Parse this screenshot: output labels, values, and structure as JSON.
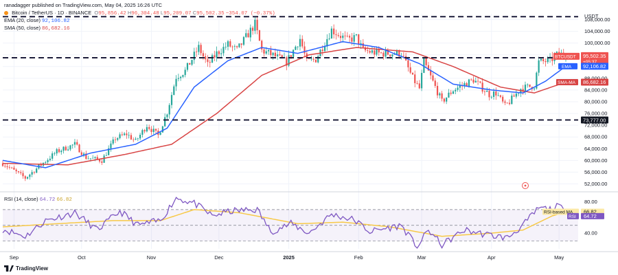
{
  "header": {
    "published_line": "ranadagger published on TradingView.com, May 04, 2025 16:26 UTC",
    "symbol_line": "Bitcoin / TetherUS · 1D · BINANCE",
    "ohlc": {
      "o_label": "O",
      "o": "95,856.42",
      "h_label": "H",
      "h": "96,304.48",
      "l_label": "L",
      "l": "95,209.07",
      "c_label": "C",
      "c": "95,502.35",
      "change": "−354.07 (−0.37%)"
    },
    "ema_label": "EMA (20, close)",
    "ema_value": "92,106.82",
    "sma_label": "SMA (50, close)",
    "sma_value": "86,682.16",
    "rsi_label": "RSI (14, close)",
    "rsi_value": "64.72",
    "rsi_ma_value": "66.82",
    "currency": "USDT"
  },
  "colors": {
    "up": "#26a69a",
    "down": "#ef5350",
    "ema": "#2962ff",
    "sma": "#d84444",
    "rsi": "#7e57c2",
    "rsi_ma": "#f7c948",
    "dashed": "#1c1c3a",
    "grid": "#f0f3fa"
  },
  "chart_data": {
    "type": "candlestick",
    "symbol": "BTCUSDT",
    "timeframe": "1D",
    "x_range": [
      "2024-08-27",
      "2025-05-04"
    ],
    "ylim": [
      50000,
      110000
    ],
    "y_ticks": [
      52000,
      56000,
      60000,
      64000,
      68000,
      72000,
      76000,
      80000,
      84000,
      88000,
      92000,
      96000,
      100000,
      104000,
      108000
    ],
    "y_tick_labels": [
      "52,000.00",
      "56,000.00",
      "60,000.00",
      "64,000.00",
      "68,000.00",
      "72,000.00",
      "76,000.00",
      "80,000.00",
      "84,000.00",
      "88,000.00",
      "92,000.00",
      "96,000.00",
      "100,000.00",
      "104,000.00",
      "108,000.00"
    ],
    "x_ticks": [
      "2024-09-01",
      "2024-10-01",
      "2024-11-01",
      "2024-12-01",
      "2025-01-01",
      "2025-02-01",
      "2025-03-01",
      "2025-04-01",
      "2025-05-01"
    ],
    "x_tick_labels": [
      "Sep",
      "Oct",
      "Nov",
      "Dec",
      "2025",
      "Feb",
      "Mar",
      "Apr",
      "May"
    ],
    "anchors": [
      [
        "2024-08-27",
        59000
      ],
      [
        "2024-09-06",
        54000
      ],
      [
        "2024-09-13",
        58500
      ],
      [
        "2024-09-20",
        63000
      ],
      [
        "2024-09-28",
        65500
      ],
      [
        "2024-10-03",
        61000
      ],
      [
        "2024-10-10",
        60000
      ],
      [
        "2024-10-16",
        67500
      ],
      [
        "2024-10-21",
        69000
      ],
      [
        "2024-10-25",
        66500
      ],
      [
        "2024-10-30",
        72000
      ],
      [
        "2024-11-04",
        68500
      ],
      [
        "2024-11-08",
        76500
      ],
      [
        "2024-11-12",
        88500
      ],
      [
        "2024-11-16",
        90500
      ],
      [
        "2024-11-22",
        98500
      ],
      [
        "2024-11-26",
        92500
      ],
      [
        "2024-11-30",
        96500
      ],
      [
        "2024-12-05",
        99500
      ],
      [
        "2024-12-09",
        97500
      ],
      [
        "2024-12-17",
        106500
      ],
      [
        "2024-12-20",
        97500
      ],
      [
        "2024-12-26",
        95500
      ],
      [
        "2024-12-31",
        93500
      ],
      [
        "2025-01-06",
        101500
      ],
      [
        "2025-01-09",
        93500
      ],
      [
        "2025-01-13",
        94500
      ],
      [
        "2025-01-20",
        104500
      ],
      [
        "2025-01-27",
        101000
      ],
      [
        "2025-01-31",
        102000
      ],
      [
        "2025-02-03",
        97500
      ],
      [
        "2025-02-10",
        96500
      ],
      [
        "2025-02-20",
        96500
      ],
      [
        "2025-02-25",
        88000
      ],
      [
        "2025-02-28",
        84500
      ],
      [
        "2025-03-02",
        93500
      ],
      [
        "2025-03-10",
        80000
      ],
      [
        "2025-03-15",
        84000
      ],
      [
        "2025-03-24",
        87500
      ],
      [
        "2025-03-31",
        82500
      ],
      [
        "2025-04-03",
        83000
      ],
      [
        "2025-04-07",
        78500
      ],
      [
        "2025-04-09",
        80000
      ],
      [
        "2025-04-14",
        84500
      ],
      [
        "2025-04-20",
        85500
      ],
      [
        "2025-04-22",
        93500
      ],
      [
        "2025-04-27",
        94000
      ],
      [
        "2025-05-01",
        96500
      ],
      [
        "2025-05-04",
        95502
      ]
    ],
    "ema": {
      "name": "EMA (20, close)",
      "last": 92106.82,
      "anchors": [
        [
          "2024-08-27",
          60000
        ],
        [
          "2024-09-15",
          57500
        ],
        [
          "2024-10-05",
          62500
        ],
        [
          "2024-10-25",
          65500
        ],
        [
          "2024-11-08",
          71000
        ],
        [
          "2024-11-20",
          85000
        ],
        [
          "2024-12-05",
          94000
        ],
        [
          "2024-12-20",
          98500
        ],
        [
          "2025-01-05",
          96500
        ],
        [
          "2025-01-25",
          100500
        ],
        [
          "2025-02-10",
          98500
        ],
        [
          "2025-02-28",
          93000
        ],
        [
          "2025-03-15",
          86000
        ],
        [
          "2025-04-01",
          84000
        ],
        [
          "2025-04-15",
          83000
        ],
        [
          "2025-04-25",
          87000
        ],
        [
          "2025-05-04",
          92107
        ]
      ]
    },
    "sma": {
      "name": "SMA (50, close)",
      "last": 86682.16,
      "anchors": [
        [
          "2024-08-27",
          59000
        ],
        [
          "2024-09-25",
          58500
        ],
        [
          "2024-10-20",
          62000
        ],
        [
          "2024-11-10",
          65500
        ],
        [
          "2024-11-30",
          76000
        ],
        [
          "2024-12-20",
          89000
        ],
        [
          "2025-01-10",
          96000
        ],
        [
          "2025-01-31",
          98500
        ],
        [
          "2025-02-25",
          97000
        ],
        [
          "2025-03-15",
          92000
        ],
        [
          "2025-04-05",
          85000
        ],
        [
          "2025-04-20",
          83000
        ],
        [
          "2025-05-04",
          86682
        ]
      ]
    },
    "levels": [
      {
        "value": 109000,
        "label": ""
      },
      {
        "value": 95000,
        "label": "95,000.00"
      },
      {
        "value": 73777,
        "label": "73,777.00"
      }
    ],
    "price_labels": {
      "last": {
        "value": 95502.35,
        "label": "95,502.35",
        "tag": "BTCUSDT",
        "sub": "+05:37"
      },
      "ema_tag": "EMA",
      "sma_tag": "SMA-MA"
    },
    "rsi": {
      "ylim": [
        20,
        90
      ],
      "ticks": [
        40,
        80
      ],
      "tick_labels": [
        "40.00",
        "80.00"
      ],
      "band": [
        30,
        70
      ],
      "anchors": [
        [
          "2024-08-27",
          45
        ],
        [
          "2024-09-06",
          36
        ],
        [
          "2024-09-15",
          56
        ],
        [
          "2024-09-28",
          66
        ],
        [
          "2024-10-08",
          44
        ],
        [
          "2024-10-18",
          68
        ],
        [
          "2024-10-26",
          50
        ],
        [
          "2024-11-05",
          56
        ],
        [
          "2024-11-12",
          85
        ],
        [
          "2024-11-20",
          78
        ],
        [
          "2024-11-28",
          62
        ],
        [
          "2024-12-06",
          68
        ],
        [
          "2024-12-18",
          70
        ],
        [
          "2024-12-24",
          42
        ],
        [
          "2025-01-02",
          52
        ],
        [
          "2025-01-10",
          40
        ],
        [
          "2025-01-20",
          64
        ],
        [
          "2025-01-30",
          57
        ],
        [
          "2025-02-06",
          42
        ],
        [
          "2025-02-20",
          50
        ],
        [
          "2025-02-27",
          22
        ],
        [
          "2025-03-04",
          44
        ],
        [
          "2025-03-10",
          25
        ],
        [
          "2025-03-20",
          44
        ],
        [
          "2025-03-30",
          38
        ],
        [
          "2025-04-08",
          34
        ],
        [
          "2025-04-15",
          50
        ],
        [
          "2025-04-22",
          72
        ],
        [
          "2025-04-28",
          70
        ],
        [
          "2025-05-01",
          75
        ],
        [
          "2025-05-04",
          64.72
        ]
      ],
      "ma_anchors": [
        [
          "2024-08-27",
          48
        ],
        [
          "2024-09-20",
          52
        ],
        [
          "2024-10-15",
          56
        ],
        [
          "2024-11-05",
          56
        ],
        [
          "2024-11-20",
          70
        ],
        [
          "2024-12-10",
          66
        ],
        [
          "2025-01-05",
          52
        ],
        [
          "2025-01-25",
          54
        ],
        [
          "2025-02-15",
          48
        ],
        [
          "2025-03-10",
          36
        ],
        [
          "2025-04-01",
          40
        ],
        [
          "2025-04-15",
          44
        ],
        [
          "2025-04-28",
          62
        ],
        [
          "2025-05-04",
          66.82
        ]
      ],
      "value_tag": "RSI",
      "ma_tag": "RSI-based MA"
    }
  },
  "footer": {
    "brand": "TradingView"
  }
}
